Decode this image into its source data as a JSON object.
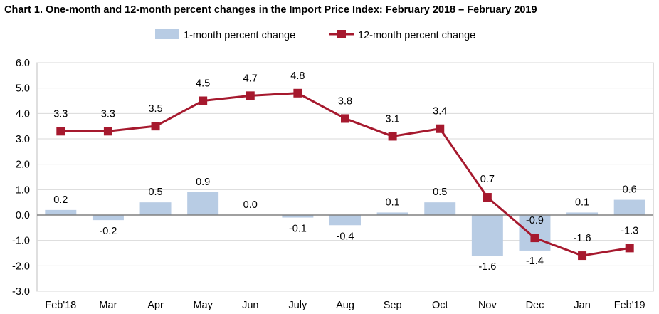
{
  "title": "Chart 1. One-month and 12-month percent changes in the Import Price Index: February 2018 – February 2019",
  "chart_data": {
    "type": "bar",
    "title": "Chart 1. One-month and 12-month percent changes in the Import Price Index: February 2018 – February 2019",
    "categories": [
      "Feb'18",
      "Mar",
      "Apr",
      "May",
      "Jun",
      "July",
      "Aug",
      "Sep",
      "Oct",
      "Nov",
      "Dec",
      "Jan",
      "Feb'19"
    ],
    "series": [
      {
        "name": "1-month percent change",
        "kind": "bar",
        "color": "#b8cce4",
        "values": [
          0.2,
          -0.2,
          0.5,
          0.9,
          0.0,
          -0.1,
          -0.4,
          0.1,
          0.5,
          -1.6,
          -1.4,
          0.1,
          0.6
        ],
        "labels": [
          "0.2",
          "-0.2",
          "0.5",
          "0.9",
          "0.0",
          "-0.1",
          "-0.4",
          "0.1",
          "0.5",
          "-1.6",
          "-1.4",
          "0.1",
          "0.6"
        ]
      },
      {
        "name": "12-month percent change",
        "kind": "line",
        "color": "#a6192e",
        "values": [
          3.3,
          3.3,
          3.5,
          4.5,
          4.7,
          4.8,
          3.8,
          3.1,
          3.4,
          0.7,
          -0.9,
          -1.6,
          -1.3
        ],
        "labels": [
          "3.3",
          "3.3",
          "3.5",
          "4.5",
          "4.7",
          "4.8",
          "3.8",
          "3.1",
          "3.4",
          "0.7",
          "-0.9",
          "-1.6",
          "-1.3"
        ]
      }
    ],
    "ylim": [
      -3.0,
      6.0
    ],
    "yticks": [
      "6.0",
      "5.0",
      "4.0",
      "3.0",
      "2.0",
      "1.0",
      "0.0",
      "-1.0",
      "-2.0",
      "-3.0"
    ],
    "ytick_values": [
      6,
      5,
      4,
      3,
      2,
      1,
      0,
      -1,
      -2,
      -3
    ],
    "grid": true,
    "legend": "top-center",
    "xlabel": "",
    "ylabel": ""
  }
}
